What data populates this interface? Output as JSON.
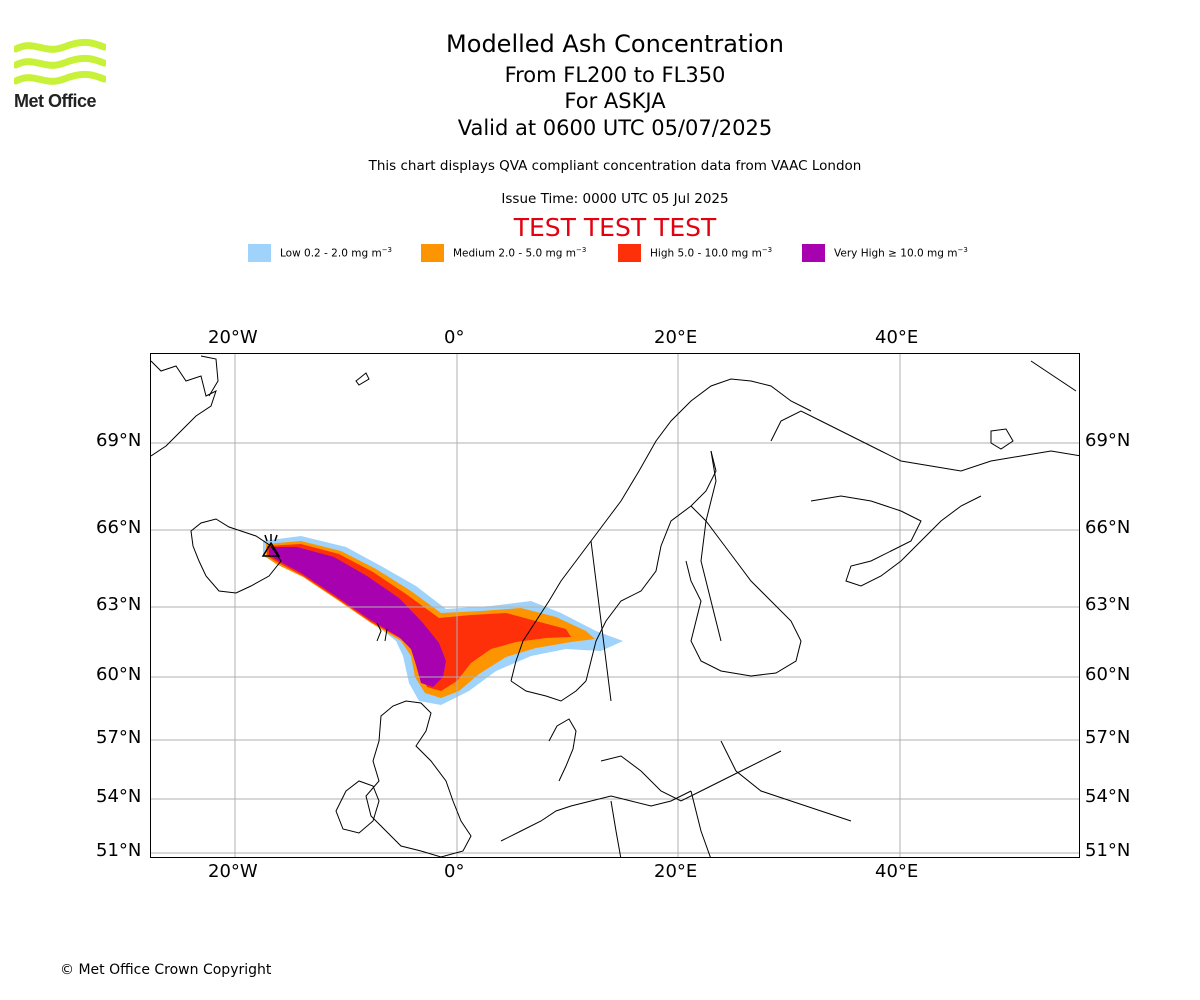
{
  "header": {
    "title": "Modelled Ash Concentration",
    "level_range": "From FL200 to FL350",
    "volcano": "For ASKJA",
    "valid_time": "Valid at 0600 UTC 05/07/2025",
    "description": "This chart displays QVA compliant concentration data from VAAC London",
    "issue_time": "Issue Time: 0000 UTC 05 Jul 2025",
    "test_banner": "TEST TEST TEST"
  },
  "logo": {
    "text": "Met Office",
    "color": "#c8f23a"
  },
  "legend": [
    {
      "label": "Low 0.2 - 2.0 mg m",
      "exp": "−3",
      "color": "#9fd3fb"
    },
    {
      "label": "Medium 2.0 - 5.0 mg m",
      "exp": "−3",
      "color": "#fd9500"
    },
    {
      "label": "High 5.0 - 10.0 mg m",
      "exp": "−3",
      "color": "#fd3009"
    },
    {
      "label": "Very High  ≥  10.0 mg m",
      "exp": "−3",
      "color": "#a802b0"
    }
  ],
  "map": {
    "lon_ticks": [
      "20°W",
      "0°",
      "20°E",
      "40°E"
    ],
    "lat_ticks": [
      "69°N",
      "66°N",
      "63°N",
      "60°N",
      "57°N",
      "54°N",
      "51°N"
    ],
    "grid": true,
    "gridline_color": "#b0b0b0",
    "coastline_color": "#000000",
    "volcano_marker": "volcano-icon"
  },
  "footer": {
    "copyright": "© Met Office Crown Copyright"
  }
}
